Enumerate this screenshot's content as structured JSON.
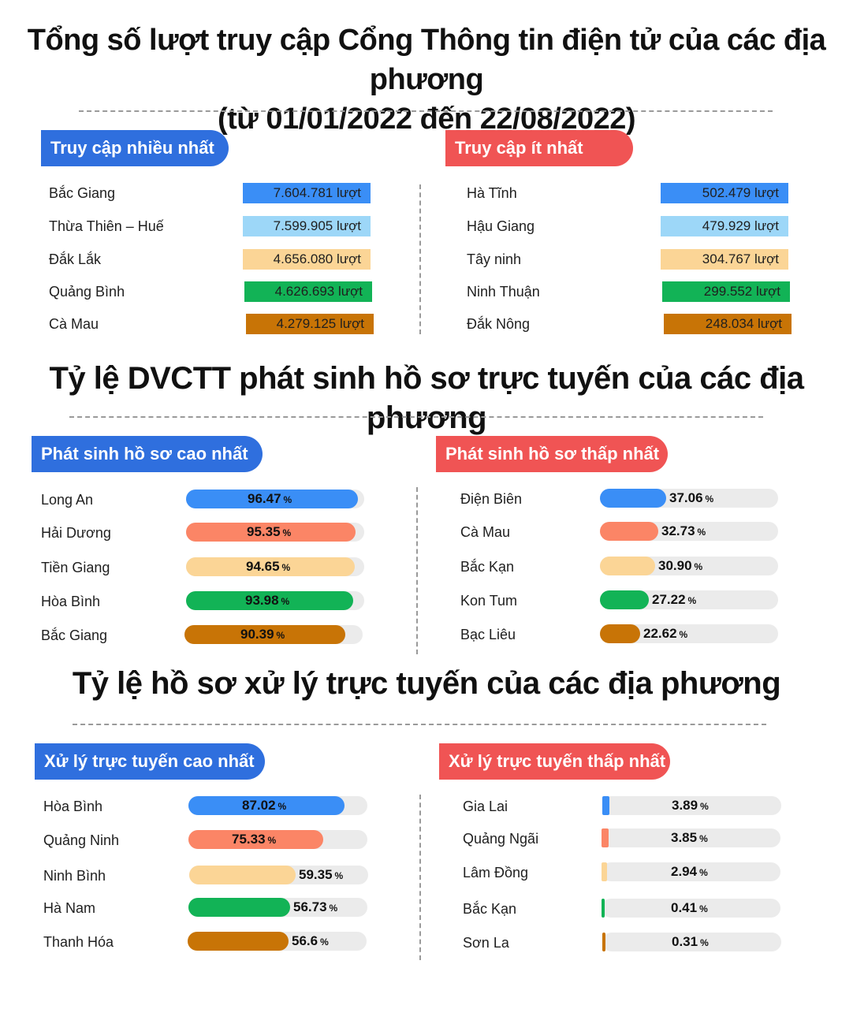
{
  "titles": {
    "t1_line1": "Tổng số lượt truy cập Cổng Thông tin điện tử của các địa phương",
    "t1_line2": "(từ 01/01/2022 đến 22/08/2022)",
    "t2": "Tỷ lệ DVCTT phát sinh hồ sơ trực tuyến của các địa phương",
    "t3": "Tỷ lệ hồ sơ xử lý trực tuyến của các địa phương"
  },
  "colors": [
    "#3a8ef6",
    "#9dd7f8",
    "#fbd596",
    "#12b356",
    "#c87406"
  ],
  "bar_colors": [
    "#3a8ef6",
    "#fb8566",
    "#fbd596",
    "#12b356",
    "#c87406"
  ],
  "pill_colors": {
    "blue": "#2f6fde",
    "red": "#f05454"
  },
  "chart_data": [
    {
      "type": "table",
      "title": "Truy cập nhiều nhất",
      "unit": "lượt",
      "categories": [
        "Bắc Giang",
        "Thừa Thiên – Huế",
        "Đắk Lắk",
        "Quảng Bình",
        "Cà Mau"
      ],
      "display": [
        "7.604.781",
        "7.599.905",
        "4.656.080",
        "4.626.693",
        "4.279.125"
      ],
      "values": [
        7604781,
        7599905,
        4656080,
        4626693,
        4279125
      ]
    },
    {
      "type": "table",
      "title": "Truy cập ít nhất",
      "unit": "lượt",
      "categories": [
        "Hà Tĩnh",
        "Hậu Giang",
        "Tây ninh",
        "Ninh Thuận",
        "Đắk Nông"
      ],
      "display": [
        "502.479",
        "479.929",
        "304.767",
        "299.552",
        "248.034"
      ],
      "values": [
        502479,
        479929,
        304767,
        299552,
        248034
      ]
    },
    {
      "type": "bar",
      "title": "Phát sinh hồ sơ cao nhất",
      "unit": "%",
      "ylim": [
        0,
        100
      ],
      "categories": [
        "Long An",
        "Hải Dương",
        "Tiền Giang",
        "Hòa Bình",
        "Bắc Giang"
      ],
      "display": [
        "96.47",
        "95.35",
        "94.65",
        "93.98",
        "90.39"
      ],
      "values": [
        96.47,
        95.35,
        94.65,
        93.98,
        90.39
      ]
    },
    {
      "type": "bar",
      "title": "Phát sinh hồ sơ thấp nhất",
      "unit": "%",
      "ylim": [
        0,
        100
      ],
      "categories": [
        "Điện Biên",
        "Cà Mau",
        "Bắc Kạn",
        "Kon Tum",
        "Bạc Liêu"
      ],
      "display": [
        "37.06",
        "32.73",
        "30.90",
        "27.22",
        "22.62"
      ],
      "values": [
        37.06,
        32.73,
        30.9,
        27.22,
        22.62
      ]
    },
    {
      "type": "bar",
      "title": "Xử lý trực tuyến cao nhất",
      "unit": "%",
      "ylim": [
        0,
        100
      ],
      "categories": [
        "Hòa Bình",
        "Quảng Ninh",
        "Ninh Bình",
        "Hà Nam",
        "Thanh Hóa"
      ],
      "display": [
        "87.02",
        "75.33",
        "59.35",
        "56.73",
        "56.6"
      ],
      "values": [
        87.02,
        75.33,
        59.35,
        56.73,
        56.6
      ]
    },
    {
      "type": "bar",
      "title": "Xử lý trực tuyến thấp nhất",
      "unit": "%",
      "ylim": [
        0,
        100
      ],
      "categories": [
        "Gia Lai",
        "Quảng Ngãi",
        "Lâm Đồng",
        "Bắc Kạn",
        "Sơn La"
      ],
      "display": [
        "3.89",
        "3.85",
        "2.94",
        "0.41",
        "0.31"
      ],
      "values": [
        3.89,
        3.85,
        2.94,
        0.41,
        0.31
      ]
    }
  ]
}
